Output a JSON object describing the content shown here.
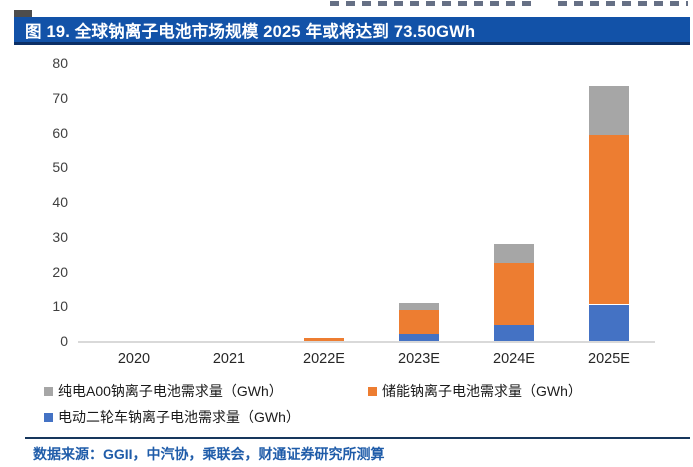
{
  "page": {
    "title": "图 19. 全球钠离子电池市场规模 2025 年或将达到 73.50GWh",
    "source_note": "数据来源：GGII，中汽协，乘联会，财通证券研究所测算"
  },
  "colors": {
    "title_bg": "#1252A8",
    "title_border": "#0C2F66",
    "title_text": "#FFFFFF",
    "series_blue": "#4472C4",
    "series_orange": "#ED7D31",
    "series_gray": "#A6A6A6",
    "axis_line": "#D9D9D9",
    "axis_text": "#3F3F3F",
    "divider": "#16365C",
    "source_text": "#1F5CA9"
  },
  "chart_data": {
    "type": "bar",
    "stacked": true,
    "title": "图 19. 全球钠离子电池市场规模 2025 年或将达到 73.50GWh",
    "categories": [
      "2020",
      "2021",
      "2022E",
      "2023E",
      "2024E",
      "2025E"
    ],
    "series": [
      {
        "name": "电动二轮车钠离子电池需求量（GWh）",
        "color_key": "series_blue",
        "values": [
          0,
          0,
          0,
          2,
          4.5,
          10.5
        ]
      },
      {
        "name": "储能钠离子电池需求量（GWh）",
        "color_key": "series_orange",
        "values": [
          0,
          0,
          1,
          7,
          18,
          48.7
        ]
      },
      {
        "name": "纯电A00钠离子电池需求量（GWh）",
        "color_key": "series_gray",
        "values": [
          0,
          0,
          0,
          2,
          5.5,
          14.3
        ]
      }
    ],
    "totals": [
      0,
      0,
      1,
      11,
      28,
      73.5
    ],
    "xlabel": "",
    "ylabel": "",
    "ylim": [
      0,
      80
    ],
    "yticks": [
      0,
      10,
      20,
      30,
      40,
      50,
      60,
      70,
      80
    ],
    "grid": false,
    "legend_position": "bottom"
  },
  "legend": {
    "items": [
      {
        "label": "纯电A00钠离子电池需求量（GWh）",
        "color_key": "series_gray"
      },
      {
        "label": "储能钠离子电池需求量（GWh）",
        "color_key": "series_orange"
      },
      {
        "label": "电动二轮车钠离子电池需求量（GWh）",
        "color_key": "series_blue"
      }
    ]
  }
}
